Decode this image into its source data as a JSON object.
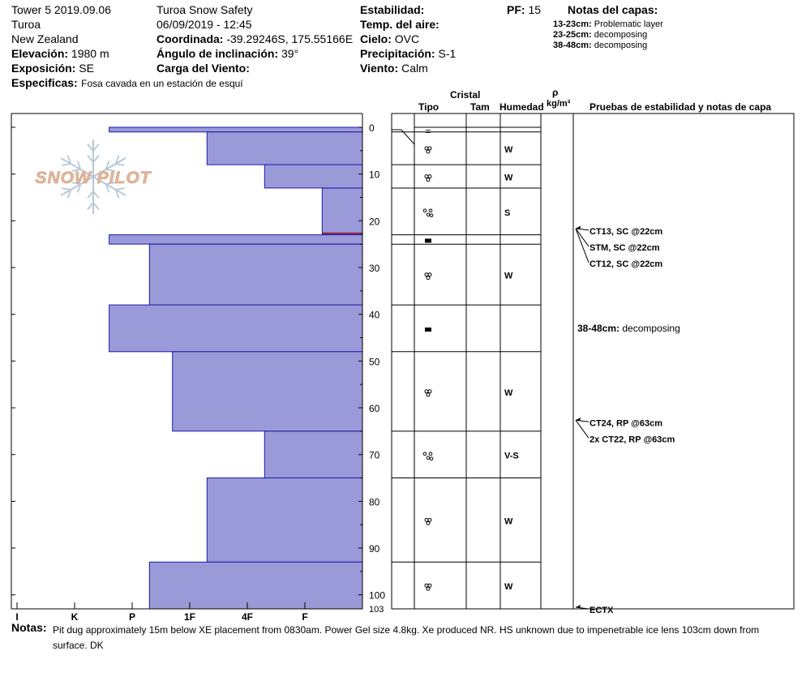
{
  "header": {
    "col1": [
      "Tower 5 2019.09.06",
      "Turoa",
      "New Zealand"
    ],
    "elevation_label": "Elevación:",
    "elevation_value": "1980 m",
    "aspect_label": "Exposición:",
    "aspect_value": "SE",
    "specifics_label": "Especificas:",
    "specifics_value": "Fosa cavada en un estación de esquí",
    "organization": "Turoa Snow Safety",
    "datetime": "06/09/2019 - 12:45",
    "coord_label": "Coordinada:",
    "coord_value": "-39.29246S, 175.55166E",
    "incline_label": "Ángulo de inclinación:",
    "incline_value": "39°",
    "wind_load_label": "Carga del Viento:",
    "wind_load_value": "",
    "stability_label": "Estabilidad:",
    "stability_value": "",
    "air_temp_label": "Temp. del aire:",
    "air_temp_value": "",
    "sky_label": "Cielo:",
    "sky_value": "OVC",
    "precip_label": "Precipitación:",
    "precip_value": "S-1",
    "wind_label": "Viento:",
    "wind_value": "Calm",
    "pf_label": "PF:",
    "pf_value": "15",
    "layer_notes_title": "Notas del capas:",
    "layer_notes": [
      {
        "range": "13-23cm:",
        "text": "Problematic layer"
      },
      {
        "range": "23-25cm:",
        "text": "decomposing"
      },
      {
        "range": "38-48cm:",
        "text": "decomposing"
      }
    ]
  },
  "column_headers": {
    "crystal": "Cristal",
    "type": "Tipo",
    "size": "Tam",
    "moisture": "Humedad",
    "density_symbol": "ρ",
    "density_unit": "kg/m³",
    "tests": "Pruebas de estabilidad y notas de capa"
  },
  "logo_text": "SNOW PILOT",
  "chart_data": {
    "type": "bar",
    "orientation": "horizontal",
    "title": "",
    "xlabel": "",
    "ylabel": "",
    "y_range": [
      0,
      103
    ],
    "y_ticks": [
      0,
      10,
      20,
      30,
      40,
      50,
      60,
      70,
      80,
      90,
      100,
      103
    ],
    "x_categories": [
      "I",
      "K",
      "P",
      "1F",
      "4F",
      "F"
    ],
    "x_levels": {
      "F": 1,
      "4F": 2,
      "1F": 3,
      "P": 4,
      "K": 5,
      "I": 6
    },
    "hardness_layers": [
      {
        "top": 0,
        "bottom": 1,
        "hardness": 4.4
      },
      {
        "top": 1,
        "bottom": 8,
        "hardness": 2.7
      },
      {
        "top": 8,
        "bottom": 13,
        "hardness": 1.7
      },
      {
        "top": 13,
        "bottom": 23,
        "hardness": 0.7
      },
      {
        "top": 23,
        "bottom": 25,
        "hardness": 4.4
      },
      {
        "top": 25,
        "bottom": 38,
        "hardness": 3.7
      },
      {
        "top": 38,
        "bottom": 48,
        "hardness": 4.4
      },
      {
        "top": 48,
        "bottom": 65,
        "hardness": 3.3
      },
      {
        "top": 65,
        "bottom": 75,
        "hardness": 1.7
      },
      {
        "top": 75,
        "bottom": 93,
        "hardness": 2.7
      },
      {
        "top": 93,
        "bottom": 103,
        "hardness": 3.7
      }
    ],
    "problematic_depth": 22.7,
    "layers": [
      {
        "top": 0,
        "bottom": 1,
        "grain": "=",
        "moisture": ""
      },
      {
        "top": 1,
        "bottom": 8,
        "grain": "melt",
        "moisture": "W"
      },
      {
        "top": 8,
        "bottom": 13,
        "grain": "melt",
        "moisture": "W"
      },
      {
        "top": 13,
        "bottom": 23,
        "grain": "cluster",
        "moisture": "S"
      },
      {
        "top": 23,
        "bottom": 25,
        "grain": "crust",
        "moisture": ""
      },
      {
        "top": 25,
        "bottom": 38,
        "grain": "melt",
        "moisture": "W"
      },
      {
        "top": 38,
        "bottom": 48,
        "grain": "crust",
        "moisture": ""
      },
      {
        "top": 48,
        "bottom": 65,
        "grain": "melt",
        "moisture": "W"
      },
      {
        "top": 65,
        "bottom": 75,
        "grain": "cluster",
        "moisture": "V-S"
      },
      {
        "top": 75,
        "bottom": 93,
        "grain": "melt-alt",
        "moisture": "W"
      },
      {
        "top": 93,
        "bottom": 103,
        "grain": "melt-alt",
        "moisture": "W"
      }
    ],
    "tests": [
      {
        "depth": 22,
        "labels": [
          "CT13, SC @22cm",
          "STM, SC @22cm",
          "CT12, SC @22cm"
        ]
      },
      {
        "depth": 63,
        "labels": [
          "CT24, RP @63cm",
          "2x CT22, RP @63cm"
        ]
      },
      {
        "depth": 103,
        "labels": [
          "ECTX"
        ]
      }
    ],
    "layer_note": {
      "depth_from": 38,
      "depth_to": 48,
      "range": "38-48cm:",
      "text": "decomposing"
    }
  },
  "notes_label": "Notas:",
  "notes_text": "Pit dug approximately 15m below XE placement from 0830am. Power Gel size 4.8kg. Xe produced NR. HS unknown due to impenetrable ice lens 103cm down from surface. DK",
  "colors": {
    "bar_fill": "#9a9ad8",
    "bar_stroke": "#1c1caa",
    "problem_line": "#8b1a3a",
    "logo": "#e6b8a0",
    "flake": "#b8c8d8"
  }
}
